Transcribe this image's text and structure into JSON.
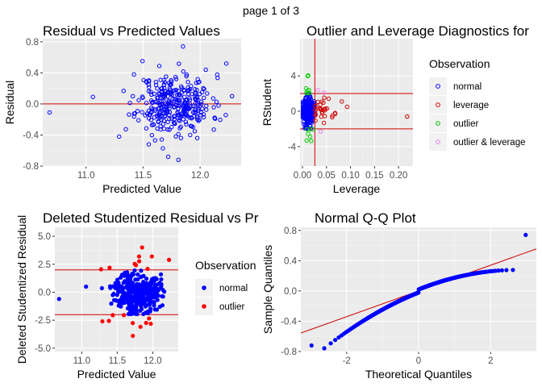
{
  "page": {
    "label": "page 1 of 3"
  },
  "colors": {
    "panel_bg": "#ebebeb",
    "grid_major": "#ffffff",
    "grid_minor": "#f5f5f5",
    "tick_text": "#4d4d4d",
    "ref_line": "#cc0000",
    "normal": "#0000ff",
    "leverage": "#cc0000",
    "outlier": "#00cc00",
    "outlier_leverage": "#ee82ee",
    "outlier_point": "#ff0000"
  },
  "chart_data": [
    {
      "id": "resid-vs-pred",
      "type": "scatter",
      "title": "Residual vs Predicted Values",
      "xlabel": "Predicted Value",
      "ylabel": "Residual",
      "xlim": [
        10.62,
        12.36
      ],
      "ylim": [
        -0.8,
        0.84
      ],
      "xticks": [
        11.0,
        11.5,
        12.0
      ],
      "xtick_labels": [
        "11.0",
        "11.5",
        "12.0"
      ],
      "yticks": [
        -0.8,
        -0.4,
        0.0,
        0.4,
        0.8
      ],
      "ytick_labels": [
        "-0.8",
        "-0.4",
        "0.0",
        "0.4",
        "0.8"
      ],
      "grid": true,
      "hlines": [
        0
      ],
      "seed": 11,
      "marker": "open-circle",
      "groups": [
        {
          "color": "#0000ff",
          "count": 340,
          "x_center": 11.78,
          "x_spread": 0.16,
          "y_center": 0.0,
          "y_spread": 0.19
        }
      ],
      "explicit_points": [
        {
          "x": 10.68,
          "y": -0.11
        },
        {
          "x": 11.06,
          "y": 0.09
        },
        {
          "x": 11.29,
          "y": -0.42
        },
        {
          "x": 11.85,
          "y": 0.74
        },
        {
          "x": 12.23,
          "y": 0.52
        },
        {
          "x": 11.72,
          "y": -0.68
        },
        {
          "x": 12.05,
          "y": 0.44
        },
        {
          "x": 11.42,
          "y": 0.38
        },
        {
          "x": 12.28,
          "y": 0.1
        },
        {
          "x": 11.55,
          "y": -0.52
        },
        {
          "x": 11.81,
          "y": -0.72
        },
        {
          "x": 12.12,
          "y": -0.33
        }
      ]
    },
    {
      "id": "outlier-leverage",
      "type": "scatter",
      "title": "Outlier and Leverage Diagnostics for",
      "xlabel": "Leverage",
      "ylabel": "RStudent",
      "xlim": [
        -0.005,
        0.23
      ],
      "ylim": [
        -6.2,
        8.2
      ],
      "xticks": [
        0.0,
        0.05,
        0.1,
        0.15,
        0.2
      ],
      "xtick_labels": [
        "0.00",
        "0.05",
        "0.10",
        "0.15",
        "0.20"
      ],
      "yticks": [
        -4,
        0,
        4
      ],
      "ytick_labels": [
        "-4",
        "0",
        "4"
      ],
      "grid": true,
      "hlines": [
        2,
        -2
      ],
      "vlines": [
        0.0258
      ],
      "legend_title": "Observation",
      "legend_position": "right",
      "legend": [
        {
          "label": "normal",
          "color": "#0000ff"
        },
        {
          "label": "leverage",
          "color": "#cc0000"
        },
        {
          "label": "outlier",
          "color": "#00cc00"
        },
        {
          "label": "outlier & leverage",
          "color": "#ee82ee"
        }
      ],
      "seed": 23,
      "marker": "open-circle",
      "groups": [
        {
          "color": "#0000ff",
          "count": 300,
          "x_center": 0.011,
          "x_spread": 0.006,
          "y_center": 0.0,
          "y_spread": 0.75,
          "x_min": 0.001,
          "x_max": 0.025,
          "y_min": -1.95,
          "y_max": 1.95
        },
        {
          "color": "#cc0000",
          "count": 28,
          "x_center": 0.04,
          "x_spread": 0.012,
          "y_center": 0.0,
          "y_spread": 0.8,
          "x_min": 0.027,
          "x_max": 0.075,
          "y_min": -1.9,
          "y_max": 1.9
        },
        {
          "color": "#00cc00",
          "count": 14,
          "x_center": 0.013,
          "x_spread": 0.006,
          "y_center": 2.6,
          "y_spread": 0.5,
          "x_min": 0.003,
          "x_max": 0.024,
          "y_min": 2.05,
          "y_max": 4.1,
          "mirror": true
        }
      ],
      "explicit_points": [
        {
          "x": 0.218,
          "y": -0.6,
          "color": "#cc0000"
        },
        {
          "x": 0.093,
          "y": 0.5,
          "color": "#cc0000"
        },
        {
          "x": 0.082,
          "y": 1.1,
          "color": "#cc0000"
        },
        {
          "x": 0.068,
          "y": -0.2,
          "color": "#cc0000"
        },
        {
          "x": 0.012,
          "y": 4.05,
          "color": "#00cc00"
        },
        {
          "x": 0.032,
          "y": 2.4,
          "color": "#ee82ee"
        },
        {
          "x": 0.045,
          "y": 2.1,
          "color": "#ee82ee"
        },
        {
          "x": 0.038,
          "y": -2.3,
          "color": "#ee82ee"
        }
      ]
    },
    {
      "id": "deleted-studentized",
      "type": "scatter",
      "title": "Deleted Studentized Residual vs Pr",
      "xlabel": "Predicted Value",
      "ylabel": "Deleted Studentized Residual",
      "xlim": [
        10.62,
        12.36
      ],
      "ylim": [
        -5.3,
        5.8
      ],
      "xticks": [
        11.0,
        11.5,
        12.0
      ],
      "xtick_labels": [
        "11.0",
        "11.5",
        "12.0"
      ],
      "yticks": [
        -5.0,
        -2.5,
        0.0,
        2.5,
        5.0
      ],
      "ytick_labels": [
        "-5.0",
        "-2.5",
        "0.0",
        "2.5",
        "5.0"
      ],
      "grid": true,
      "hlines": [
        2,
        -2
      ],
      "legend_title": "Observation",
      "legend_position": "right",
      "legend": [
        {
          "label": "normal",
          "color": "#0000ff"
        },
        {
          "label": "outlier",
          "color": "#ff0000"
        }
      ],
      "seed": 37,
      "marker": "filled-circle",
      "groups": [
        {
          "color": "#0000ff",
          "count": 330,
          "x_center": 11.78,
          "x_spread": 0.16,
          "y_center": 0.0,
          "y_spread": 0.9,
          "y_min": -1.95,
          "y_max": 1.95
        },
        {
          "color": "#ff0000",
          "count": 16,
          "x_center": 11.75,
          "x_spread": 0.22,
          "y_center": 2.5,
          "y_spread": 0.4,
          "y_min": 2.05,
          "y_max": 3.2,
          "mirror": true
        }
      ],
      "explicit_points": [
        {
          "x": 10.68,
          "y": -0.6,
          "color": "#0000ff"
        },
        {
          "x": 11.06,
          "y": 0.5,
          "color": "#0000ff"
        },
        {
          "x": 11.85,
          "y": 4.0,
          "color": "#ff0000"
        },
        {
          "x": 11.72,
          "y": -3.9,
          "color": "#ff0000"
        },
        {
          "x": 12.23,
          "y": 2.9,
          "color": "#ff0000"
        },
        {
          "x": 11.29,
          "y": -2.6,
          "color": "#ff0000"
        }
      ]
    },
    {
      "id": "normal-qq",
      "type": "scatter",
      "title": "Normal Q-Q Plot",
      "xlabel": "Theoretical Quantiles",
      "ylabel": "Sample Quantiles",
      "xlim": [
        -3.27,
        3.27
      ],
      "ylim": [
        -0.8,
        0.84
      ],
      "xticks": [
        -2,
        0,
        2
      ],
      "xtick_labels": [
        "-2",
        "0",
        "2"
      ],
      "yticks": [
        -0.8,
        -0.4,
        0.0,
        0.4,
        0.8
      ],
      "ytick_labels": [
        "-0.8",
        "-0.4",
        "0.0",
        "0.4",
        "0.8"
      ],
      "grid": true,
      "qq_count": 340,
      "qq_line": {
        "slope": 0.17,
        "intercept": 0.0
      },
      "marker": "filled-circle",
      "point_color": "#0000ff"
    }
  ]
}
